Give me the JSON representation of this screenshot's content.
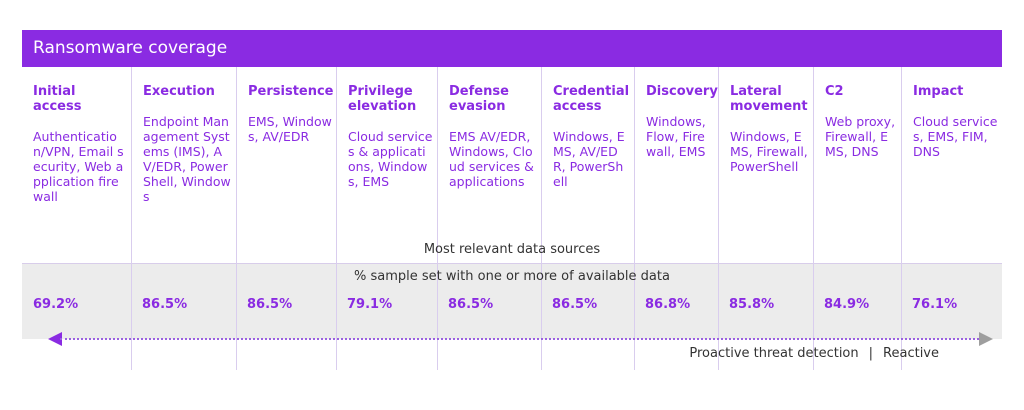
{
  "banner": {
    "title": "Ransomware coverage"
  },
  "columns": [
    {
      "title": "Initial access",
      "sources": "Authentication/VPN, Email security, Web application firewall",
      "percent": "69.2%"
    },
    {
      "title": "Execution",
      "sources": "Endpoint Management Systems (IMS), AV/EDR, PowerShell, Windows",
      "percent": "86.5%"
    },
    {
      "title": "Persistence",
      "sources": "EMS, Windows, AV/EDR",
      "percent": "86.5%"
    },
    {
      "title": "Privilege elevation",
      "sources": "Cloud services & applications, Windows, EMS",
      "percent": "79.1%"
    },
    {
      "title": "Defense evasion",
      "sources": "EMS AV/EDR, Windows, Cloud services & applications",
      "percent": "86.5%"
    },
    {
      "title": "Credential access",
      "sources": "Windows, EMS, AV/EDR, PowerShell",
      "percent": "86.5%"
    },
    {
      "title": "Discovery",
      "sources": "Windows, Flow, Firewall, EMS",
      "percent": "86.8%"
    },
    {
      "title": "Lateral movement",
      "sources": "Windows, EMS, Firewall, PowerShell",
      "percent": "85.8%"
    },
    {
      "title": "C2",
      "sources": "Web proxy, Firewall, EMS, DNS",
      "percent": "84.9%"
    },
    {
      "title": "Impact",
      "sources": "Cloud services, EMS, FIM, DNS",
      "percent": "76.1%"
    }
  ],
  "labels": {
    "data_sources": "Most relevant data sources",
    "sample_set": "% sample set with one or more of available data"
  },
  "legend": {
    "proactive": "Proactive threat detection",
    "separator": "|",
    "reactive": "Reactive"
  },
  "colors": {
    "accent": "#8a2be2",
    "band": "#ececec"
  }
}
